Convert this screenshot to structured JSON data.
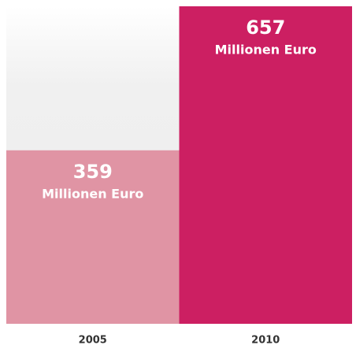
{
  "chart_data": {
    "type": "bar",
    "categories": [
      "2005",
      "2010"
    ],
    "values": [
      359,
      657
    ],
    "unit": "Millionen Euro",
    "colors": [
      "#e094a4",
      "#cc1f62"
    ],
    "ylim": [
      0,
      657
    ]
  }
}
